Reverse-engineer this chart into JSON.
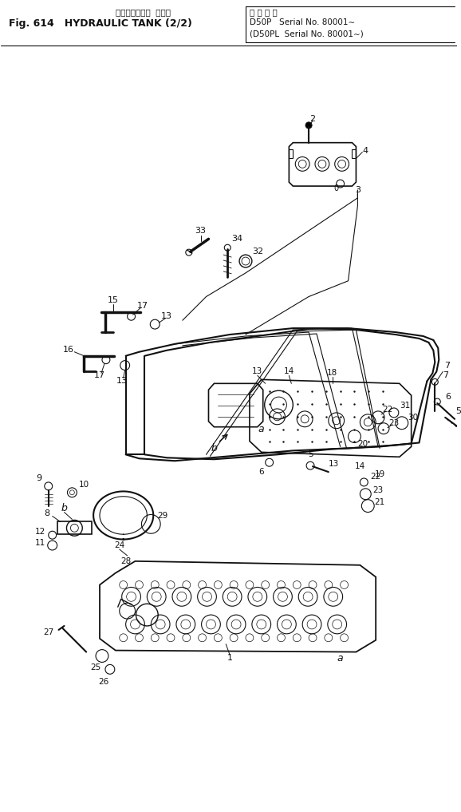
{
  "title_jp": "ハイドロリック  タンク",
  "title_en": "Fig. 614   HYDRAULIC TANK (2/2)",
  "serial_header": "適 用 号 機",
  "serial1": "D50P   Serial No. 80001∼",
  "serial2": "(D50PL  Serial No. 80001∼)",
  "bg": "#ffffff",
  "lc": "#111111",
  "fig_width": 5.78,
  "fig_height": 10.17,
  "dpi": 100
}
